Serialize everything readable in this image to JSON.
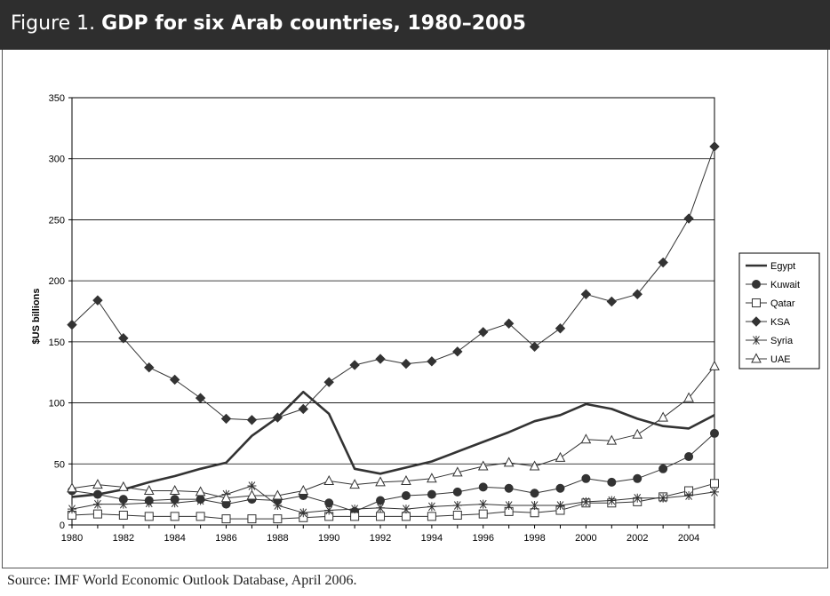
{
  "header": {
    "figure_number": "Figure 1.",
    "title": "GDP for six Arab countries, 1980–2005"
  },
  "source": "Source: IMF World Economic Outlook Database, April 2006.",
  "chart_data": {
    "type": "line",
    "title": "GDP for six Arab countries, 1980–2005",
    "xlabel": "",
    "ylabel": "$US billions",
    "ylim": [
      0,
      350
    ],
    "yticks": [
      0,
      50,
      100,
      150,
      200,
      250,
      300,
      350
    ],
    "xlim": [
      1980,
      2005
    ],
    "xticks": [
      1980,
      1982,
      1984,
      1986,
      1988,
      1990,
      1992,
      1994,
      1996,
      1998,
      2000,
      2002,
      2004
    ],
    "grid": "horizontal",
    "legend_position": "right",
    "x": [
      1980,
      1981,
      1982,
      1983,
      1984,
      1985,
      1986,
      1987,
      1988,
      1989,
      1990,
      1991,
      1992,
      1993,
      1994,
      1995,
      1996,
      1997,
      1998,
      1999,
      2000,
      2001,
      2002,
      2003,
      2004,
      2005
    ],
    "series": [
      {
        "name": "Egypt",
        "marker": "none",
        "line_width": 2.6,
        "values": [
          23,
          25,
          29,
          35,
          40,
          46,
          51,
          73,
          88,
          109,
          91,
          46,
          42,
          47,
          52,
          60,
          68,
          76,
          85,
          90,
          99,
          95,
          87,
          81,
          79,
          90
        ]
      },
      {
        "name": "Kuwait",
        "marker": "circle",
        "values": [
          28,
          25,
          21,
          20,
          21,
          21,
          17,
          21,
          20,
          24,
          18,
          11,
          20,
          24,
          25,
          27,
          31,
          30,
          26,
          30,
          38,
          35,
          38,
          46,
          56,
          75
        ]
      },
      {
        "name": "Qatar",
        "marker": "square-open",
        "values": [
          8,
          9,
          8,
          7,
          7,
          7,
          5,
          5,
          5,
          6,
          7,
          7,
          7,
          7,
          7,
          8,
          9,
          11,
          10,
          12,
          18,
          18,
          19,
          23,
          28,
          34
        ]
      },
      {
        "name": "KSA",
        "marker": "diamond",
        "values": [
          164,
          184,
          153,
          129,
          119,
          104,
          87,
          86,
          88,
          95,
          117,
          131,
          136,
          132,
          134,
          142,
          158,
          165,
          146,
          161,
          189,
          183,
          189,
          215,
          251,
          310
        ]
      },
      {
        "name": "Syria",
        "marker": "asterisk",
        "values": [
          13,
          17,
          17,
          18,
          18,
          20,
          25,
          32,
          16,
          10,
          12,
          13,
          14,
          13,
          15,
          16,
          17,
          16,
          16,
          16,
          19,
          20,
          22,
          22,
          24,
          27
        ]
      },
      {
        "name": "UAE",
        "marker": "triangle-open",
        "values": [
          30,
          33,
          31,
          28,
          28,
          27,
          22,
          24,
          24,
          28,
          36,
          33,
          35,
          36,
          38,
          43,
          48,
          51,
          48,
          55,
          70,
          69,
          74,
          88,
          104,
          130
        ]
      }
    ]
  }
}
